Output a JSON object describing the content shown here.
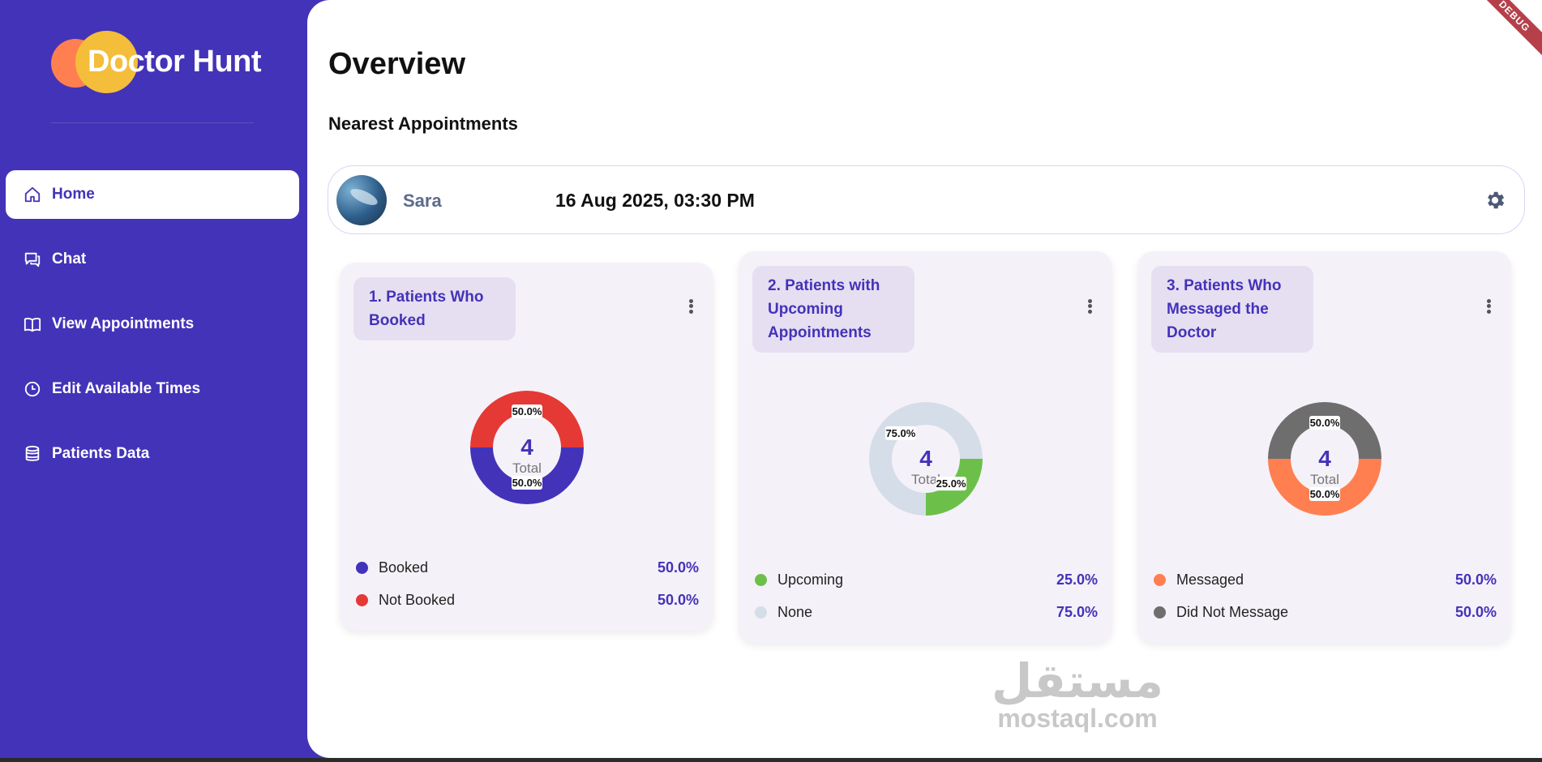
{
  "brand": {
    "name": "Doctor Hunt"
  },
  "nav": [
    {
      "label": "Home",
      "icon": "home-icon",
      "active": true
    },
    {
      "label": "Chat",
      "icon": "chat-icon",
      "active": false
    },
    {
      "label": "View Appointments",
      "icon": "book-icon",
      "active": false
    },
    {
      "label": "Edit Available Times",
      "icon": "clock-icon",
      "active": false
    },
    {
      "label": "Patients Data",
      "icon": "database-icon",
      "active": false
    }
  ],
  "page": {
    "title": "Overview",
    "section": "Nearest Appointments"
  },
  "appointment": {
    "name": "Sara",
    "datetime": "16 Aug 2025, 03:30 PM",
    "settings_icon": "gear-icon"
  },
  "cards": [
    {
      "title": "1. Patients Who Booked",
      "total": "4",
      "total_label": "Total",
      "legend": [
        {
          "label": "Booked",
          "value": "50.0%",
          "color": "#4333b8"
        },
        {
          "label": "Not Booked",
          "value": "50.0%",
          "color": "#e53935"
        }
      ]
    },
    {
      "title": "2. Patients with Upcoming Appointments",
      "total": "4",
      "total_label": "Total",
      "legend": [
        {
          "label": "Upcoming",
          "value": "25.0%",
          "color": "#6cc04a"
        },
        {
          "label": "None",
          "value": "75.0%",
          "color": "#d5dde8"
        }
      ]
    },
    {
      "title": "3. Patients Who Messaged the Doctor",
      "total": "4",
      "total_label": "Total",
      "legend": [
        {
          "label": "Messaged",
          "value": "50.0%",
          "color": "#ff7f50"
        },
        {
          "label": "Did Not Message",
          "value": "50.0%",
          "color": "#6e6e6e"
        }
      ]
    }
  ],
  "chart_data": [
    {
      "type": "pie",
      "categories": [
        "Booked",
        "Not Booked"
      ],
      "values": [
        50.0,
        50.0
      ],
      "total": 4
    },
    {
      "type": "pie",
      "categories": [
        "Upcoming",
        "None"
      ],
      "values": [
        25.0,
        75.0
      ],
      "total": 4
    },
    {
      "type": "pie",
      "categories": [
        "Messaged",
        "Did Not Message"
      ],
      "values": [
        50.0,
        50.0
      ],
      "total": 4
    }
  ],
  "watermark": {
    "arabic": "مستقل",
    "latin": "mostaql.com"
  },
  "debug_banner": "DEBUG"
}
